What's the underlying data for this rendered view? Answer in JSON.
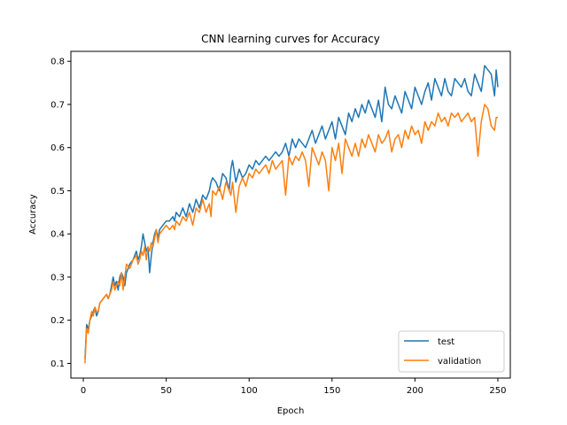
{
  "chart_data": {
    "type": "line",
    "title": "CNN learning curves for Accuracy",
    "xlabel": "Epoch",
    "ylabel": "Accuracy",
    "xlim": [
      -7.5,
      257.5
    ],
    "ylim": [
      0.066,
      0.823
    ],
    "x_ticks": [
      0,
      50,
      100,
      150,
      200,
      250
    ],
    "y_ticks": [
      0.1,
      0.2,
      0.3,
      0.4,
      0.5,
      0.6,
      0.7,
      0.8
    ],
    "legend_position": "lower-right",
    "grid": false,
    "series": [
      {
        "name": "test",
        "color": "#1f77b4",
        "points": [
          [
            1,
            0.11
          ],
          [
            2,
            0.19
          ],
          [
            3,
            0.18
          ],
          [
            4,
            0.2
          ],
          [
            5,
            0.21
          ],
          [
            6,
            0.22
          ],
          [
            7,
            0.23
          ],
          [
            8,
            0.21
          ],
          [
            9,
            0.22
          ],
          [
            10,
            0.24
          ],
          [
            12,
            0.25
          ],
          [
            14,
            0.26
          ],
          [
            15,
            0.25
          ],
          [
            16,
            0.26
          ],
          [
            17,
            0.28
          ],
          [
            18,
            0.3
          ],
          [
            19,
            0.28
          ],
          [
            20,
            0.29
          ],
          [
            21,
            0.27
          ],
          [
            22,
            0.3
          ],
          [
            23,
            0.31
          ],
          [
            24,
            0.3
          ],
          [
            25,
            0.28
          ],
          [
            26,
            0.31
          ],
          [
            28,
            0.33
          ],
          [
            30,
            0.34
          ],
          [
            32,
            0.36
          ],
          [
            33,
            0.34
          ],
          [
            34,
            0.35
          ],
          [
            35,
            0.37
          ],
          [
            36,
            0.4
          ],
          [
            37,
            0.38
          ],
          [
            38,
            0.36
          ],
          [
            39,
            0.37
          ],
          [
            40,
            0.31
          ],
          [
            41,
            0.35
          ],
          [
            42,
            0.38
          ],
          [
            43,
            0.4
          ],
          [
            44,
            0.41
          ],
          [
            45,
            0.39
          ],
          [
            46,
            0.41
          ],
          [
            48,
            0.42
          ],
          [
            50,
            0.43
          ],
          [
            52,
            0.43
          ],
          [
            54,
            0.44
          ],
          [
            55,
            0.43
          ],
          [
            56,
            0.45
          ],
          [
            58,
            0.44
          ],
          [
            60,
            0.46
          ],
          [
            62,
            0.44
          ],
          [
            64,
            0.47
          ],
          [
            66,
            0.45
          ],
          [
            68,
            0.48
          ],
          [
            70,
            0.46
          ],
          [
            72,
            0.49
          ],
          [
            74,
            0.48
          ],
          [
            76,
            0.5
          ],
          [
            77,
            0.52
          ],
          [
            78,
            0.53
          ],
          [
            80,
            0.52
          ],
          [
            82,
            0.5
          ],
          [
            84,
            0.54
          ],
          [
            86,
            0.53
          ],
          [
            88,
            0.5
          ],
          [
            89,
            0.55
          ],
          [
            90,
            0.57
          ],
          [
            92,
            0.52
          ],
          [
            94,
            0.55
          ],
          [
            96,
            0.53
          ],
          [
            98,
            0.54
          ],
          [
            100,
            0.56
          ],
          [
            102,
            0.55
          ],
          [
            104,
            0.57
          ],
          [
            106,
            0.56
          ],
          [
            108,
            0.57
          ],
          [
            110,
            0.58
          ],
          [
            112,
            0.57
          ],
          [
            114,
            0.58
          ],
          [
            116,
            0.59
          ],
          [
            118,
            0.58
          ],
          [
            120,
            0.59
          ],
          [
            122,
            0.61
          ],
          [
            124,
            0.58
          ],
          [
            126,
            0.62
          ],
          [
            128,
            0.6
          ],
          [
            130,
            0.62
          ],
          [
            132,
            0.61
          ],
          [
            134,
            0.6
          ],
          [
            136,
            0.62
          ],
          [
            138,
            0.64
          ],
          [
            140,
            0.61
          ],
          [
            142,
            0.63
          ],
          [
            144,
            0.65
          ],
          [
            146,
            0.62
          ],
          [
            148,
            0.64
          ],
          [
            150,
            0.66
          ],
          [
            152,
            0.62
          ],
          [
            154,
            0.67
          ],
          [
            156,
            0.65
          ],
          [
            158,
            0.63
          ],
          [
            160,
            0.68
          ],
          [
            162,
            0.66
          ],
          [
            164,
            0.69
          ],
          [
            166,
            0.67
          ],
          [
            168,
            0.7
          ],
          [
            170,
            0.68
          ],
          [
            172,
            0.71
          ],
          [
            174,
            0.69
          ],
          [
            176,
            0.67
          ],
          [
            178,
            0.71
          ],
          [
            180,
            0.66
          ],
          [
            182,
            0.74
          ],
          [
            184,
            0.7
          ],
          [
            186,
            0.69
          ],
          [
            188,
            0.72
          ],
          [
            190,
            0.7
          ],
          [
            192,
            0.68
          ],
          [
            194,
            0.73
          ],
          [
            196,
            0.71
          ],
          [
            198,
            0.69
          ],
          [
            200,
            0.74
          ],
          [
            202,
            0.72
          ],
          [
            204,
            0.7
          ],
          [
            206,
            0.73
          ],
          [
            208,
            0.75
          ],
          [
            210,
            0.71
          ],
          [
            212,
            0.76
          ],
          [
            214,
            0.74
          ],
          [
            216,
            0.72
          ],
          [
            218,
            0.76
          ],
          [
            220,
            0.73
          ],
          [
            222,
            0.72
          ],
          [
            224,
            0.76
          ],
          [
            226,
            0.75
          ],
          [
            228,
            0.74
          ],
          [
            230,
            0.76
          ],
          [
            232,
            0.73
          ],
          [
            234,
            0.72
          ],
          [
            236,
            0.77
          ],
          [
            238,
            0.75
          ],
          [
            240,
            0.73
          ],
          [
            242,
            0.79
          ],
          [
            244,
            0.78
          ],
          [
            246,
            0.77
          ],
          [
            248,
            0.72
          ],
          [
            249,
            0.78
          ],
          [
            250,
            0.74
          ]
        ]
      },
      {
        "name": "validation",
        "color": "#ff7f0e",
        "points": [
          [
            1,
            0.1
          ],
          [
            2,
            0.18
          ],
          [
            3,
            0.17
          ],
          [
            4,
            0.2
          ],
          [
            5,
            0.22
          ],
          [
            6,
            0.21
          ],
          [
            7,
            0.23
          ],
          [
            8,
            0.22
          ],
          [
            9,
            0.22
          ],
          [
            10,
            0.24
          ],
          [
            12,
            0.25
          ],
          [
            14,
            0.26
          ],
          [
            15,
            0.25
          ],
          [
            16,
            0.26
          ],
          [
            17,
            0.27
          ],
          [
            18,
            0.29
          ],
          [
            19,
            0.27
          ],
          [
            20,
            0.28
          ],
          [
            21,
            0.29
          ],
          [
            22,
            0.28
          ],
          [
            23,
            0.31
          ],
          [
            24,
            0.27
          ],
          [
            25,
            0.3
          ],
          [
            26,
            0.33
          ],
          [
            28,
            0.32
          ],
          [
            30,
            0.34
          ],
          [
            32,
            0.35
          ],
          [
            33,
            0.33
          ],
          [
            34,
            0.34
          ],
          [
            35,
            0.36
          ],
          [
            36,
            0.35
          ],
          [
            37,
            0.37
          ],
          [
            38,
            0.34
          ],
          [
            39,
            0.37
          ],
          [
            40,
            0.36
          ],
          [
            41,
            0.38
          ],
          [
            42,
            0.37
          ],
          [
            43,
            0.39
          ],
          [
            44,
            0.41
          ],
          [
            45,
            0.38
          ],
          [
            46,
            0.4
          ],
          [
            48,
            0.41
          ],
          [
            50,
            0.42
          ],
          [
            52,
            0.41
          ],
          [
            54,
            0.42
          ],
          [
            55,
            0.41
          ],
          [
            56,
            0.43
          ],
          [
            58,
            0.42
          ],
          [
            60,
            0.44
          ],
          [
            62,
            0.43
          ],
          [
            64,
            0.45
          ],
          [
            66,
            0.42
          ],
          [
            68,
            0.46
          ],
          [
            70,
            0.45
          ],
          [
            72,
            0.48
          ],
          [
            74,
            0.45
          ],
          [
            76,
            0.47
          ],
          [
            77,
            0.44
          ],
          [
            78,
            0.5
          ],
          [
            80,
            0.49
          ],
          [
            82,
            0.51
          ],
          [
            84,
            0.48
          ],
          [
            86,
            0.52
          ],
          [
            88,
            0.5
          ],
          [
            89,
            0.49
          ],
          [
            90,
            0.52
          ],
          [
            92,
            0.45
          ],
          [
            94,
            0.51
          ],
          [
            96,
            0.53
          ],
          [
            98,
            0.51
          ],
          [
            100,
            0.54
          ],
          [
            102,
            0.53
          ],
          [
            104,
            0.55
          ],
          [
            106,
            0.54
          ],
          [
            108,
            0.55
          ],
          [
            110,
            0.56
          ],
          [
            112,
            0.54
          ],
          [
            114,
            0.57
          ],
          [
            116,
            0.55
          ],
          [
            118,
            0.56
          ],
          [
            120,
            0.57
          ],
          [
            122,
            0.49
          ],
          [
            124,
            0.58
          ],
          [
            126,
            0.56
          ],
          [
            128,
            0.58
          ],
          [
            130,
            0.57
          ],
          [
            132,
            0.59
          ],
          [
            134,
            0.57
          ],
          [
            136,
            0.51
          ],
          [
            138,
            0.6
          ],
          [
            140,
            0.58
          ],
          [
            142,
            0.56
          ],
          [
            144,
            0.59
          ],
          [
            146,
            0.57
          ],
          [
            148,
            0.5
          ],
          [
            150,
            0.6
          ],
          [
            152,
            0.57
          ],
          [
            154,
            0.61
          ],
          [
            156,
            0.54
          ],
          [
            158,
            0.62
          ],
          [
            160,
            0.6
          ],
          [
            162,
            0.58
          ],
          [
            164,
            0.61
          ],
          [
            166,
            0.58
          ],
          [
            168,
            0.62
          ],
          [
            170,
            0.6
          ],
          [
            172,
            0.63
          ],
          [
            174,
            0.61
          ],
          [
            176,
            0.59
          ],
          [
            178,
            0.63
          ],
          [
            180,
            0.61
          ],
          [
            182,
            0.62
          ],
          [
            184,
            0.64
          ],
          [
            186,
            0.59
          ],
          [
            188,
            0.62
          ],
          [
            190,
            0.63
          ],
          [
            192,
            0.6
          ],
          [
            194,
            0.64
          ],
          [
            196,
            0.62
          ],
          [
            198,
            0.65
          ],
          [
            200,
            0.63
          ],
          [
            202,
            0.64
          ],
          [
            204,
            0.61
          ],
          [
            206,
            0.66
          ],
          [
            208,
            0.64
          ],
          [
            210,
            0.66
          ],
          [
            212,
            0.65
          ],
          [
            214,
            0.68
          ],
          [
            216,
            0.66
          ],
          [
            218,
            0.67
          ],
          [
            220,
            0.65
          ],
          [
            222,
            0.68
          ],
          [
            224,
            0.67
          ],
          [
            226,
            0.68
          ],
          [
            228,
            0.66
          ],
          [
            230,
            0.67
          ],
          [
            232,
            0.68
          ],
          [
            234,
            0.66
          ],
          [
            236,
            0.67
          ],
          [
            238,
            0.58
          ],
          [
            240,
            0.66
          ],
          [
            242,
            0.7
          ],
          [
            244,
            0.69
          ],
          [
            246,
            0.65
          ],
          [
            248,
            0.64
          ],
          [
            249,
            0.67
          ],
          [
            250,
            0.67
          ]
        ]
      }
    ]
  }
}
